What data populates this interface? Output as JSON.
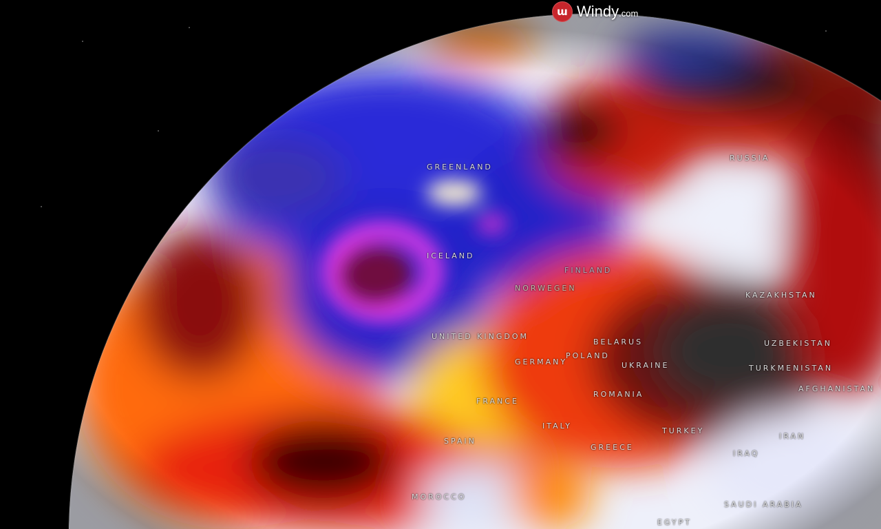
{
  "brand": {
    "name": "Windy",
    "suffix": ".com",
    "icon": "windy-logo-icon",
    "color": "#c8262c"
  },
  "labels": [
    {
      "id": "greenland",
      "text": "GREENLAND"
    },
    {
      "id": "russia",
      "text": "RUSSIA"
    },
    {
      "id": "iceland",
      "text": "ICELAND"
    },
    {
      "id": "finland",
      "text": "FINLAND"
    },
    {
      "id": "norwegen",
      "text": "NORWEGEN"
    },
    {
      "id": "united-kingdom",
      "text": "UNITED KINGDOM"
    },
    {
      "id": "kazakhstan",
      "text": "KAZAKHSTAN"
    },
    {
      "id": "belarus",
      "text": "BELARUS"
    },
    {
      "id": "uzbekistan",
      "text": "UZBEKISTAN"
    },
    {
      "id": "poland",
      "text": "POLAND"
    },
    {
      "id": "germany",
      "text": "GERMANY"
    },
    {
      "id": "ukraine",
      "text": "UKRAINE"
    },
    {
      "id": "turkmenistan",
      "text": "TURKMENISTAN"
    },
    {
      "id": "afghanistan",
      "text": "AFGHANISTAN"
    },
    {
      "id": "romania",
      "text": "ROMANIA"
    },
    {
      "id": "france",
      "text": "FRANCE"
    },
    {
      "id": "italy",
      "text": "ITALY"
    },
    {
      "id": "spain",
      "text": "SPAIN"
    },
    {
      "id": "turkey",
      "text": "TURKEY"
    },
    {
      "id": "iran",
      "text": "IRAN"
    },
    {
      "id": "greece",
      "text": "GREECE"
    },
    {
      "id": "iraq",
      "text": "IRAQ"
    },
    {
      "id": "morocco",
      "text": "MOROCCO"
    },
    {
      "id": "saudi-arabia",
      "text": "SAUDI ARABIA"
    },
    {
      "id": "egypt",
      "text": "EGYPT"
    }
  ],
  "colors": {
    "cold": "#1a1fd0",
    "very_cold": "#e030e0",
    "neutral": "#e8ecf8",
    "warm": "#ffd21e",
    "hot": "#e01a0a",
    "extreme": "#2a2a2a",
    "space": "#000000"
  }
}
